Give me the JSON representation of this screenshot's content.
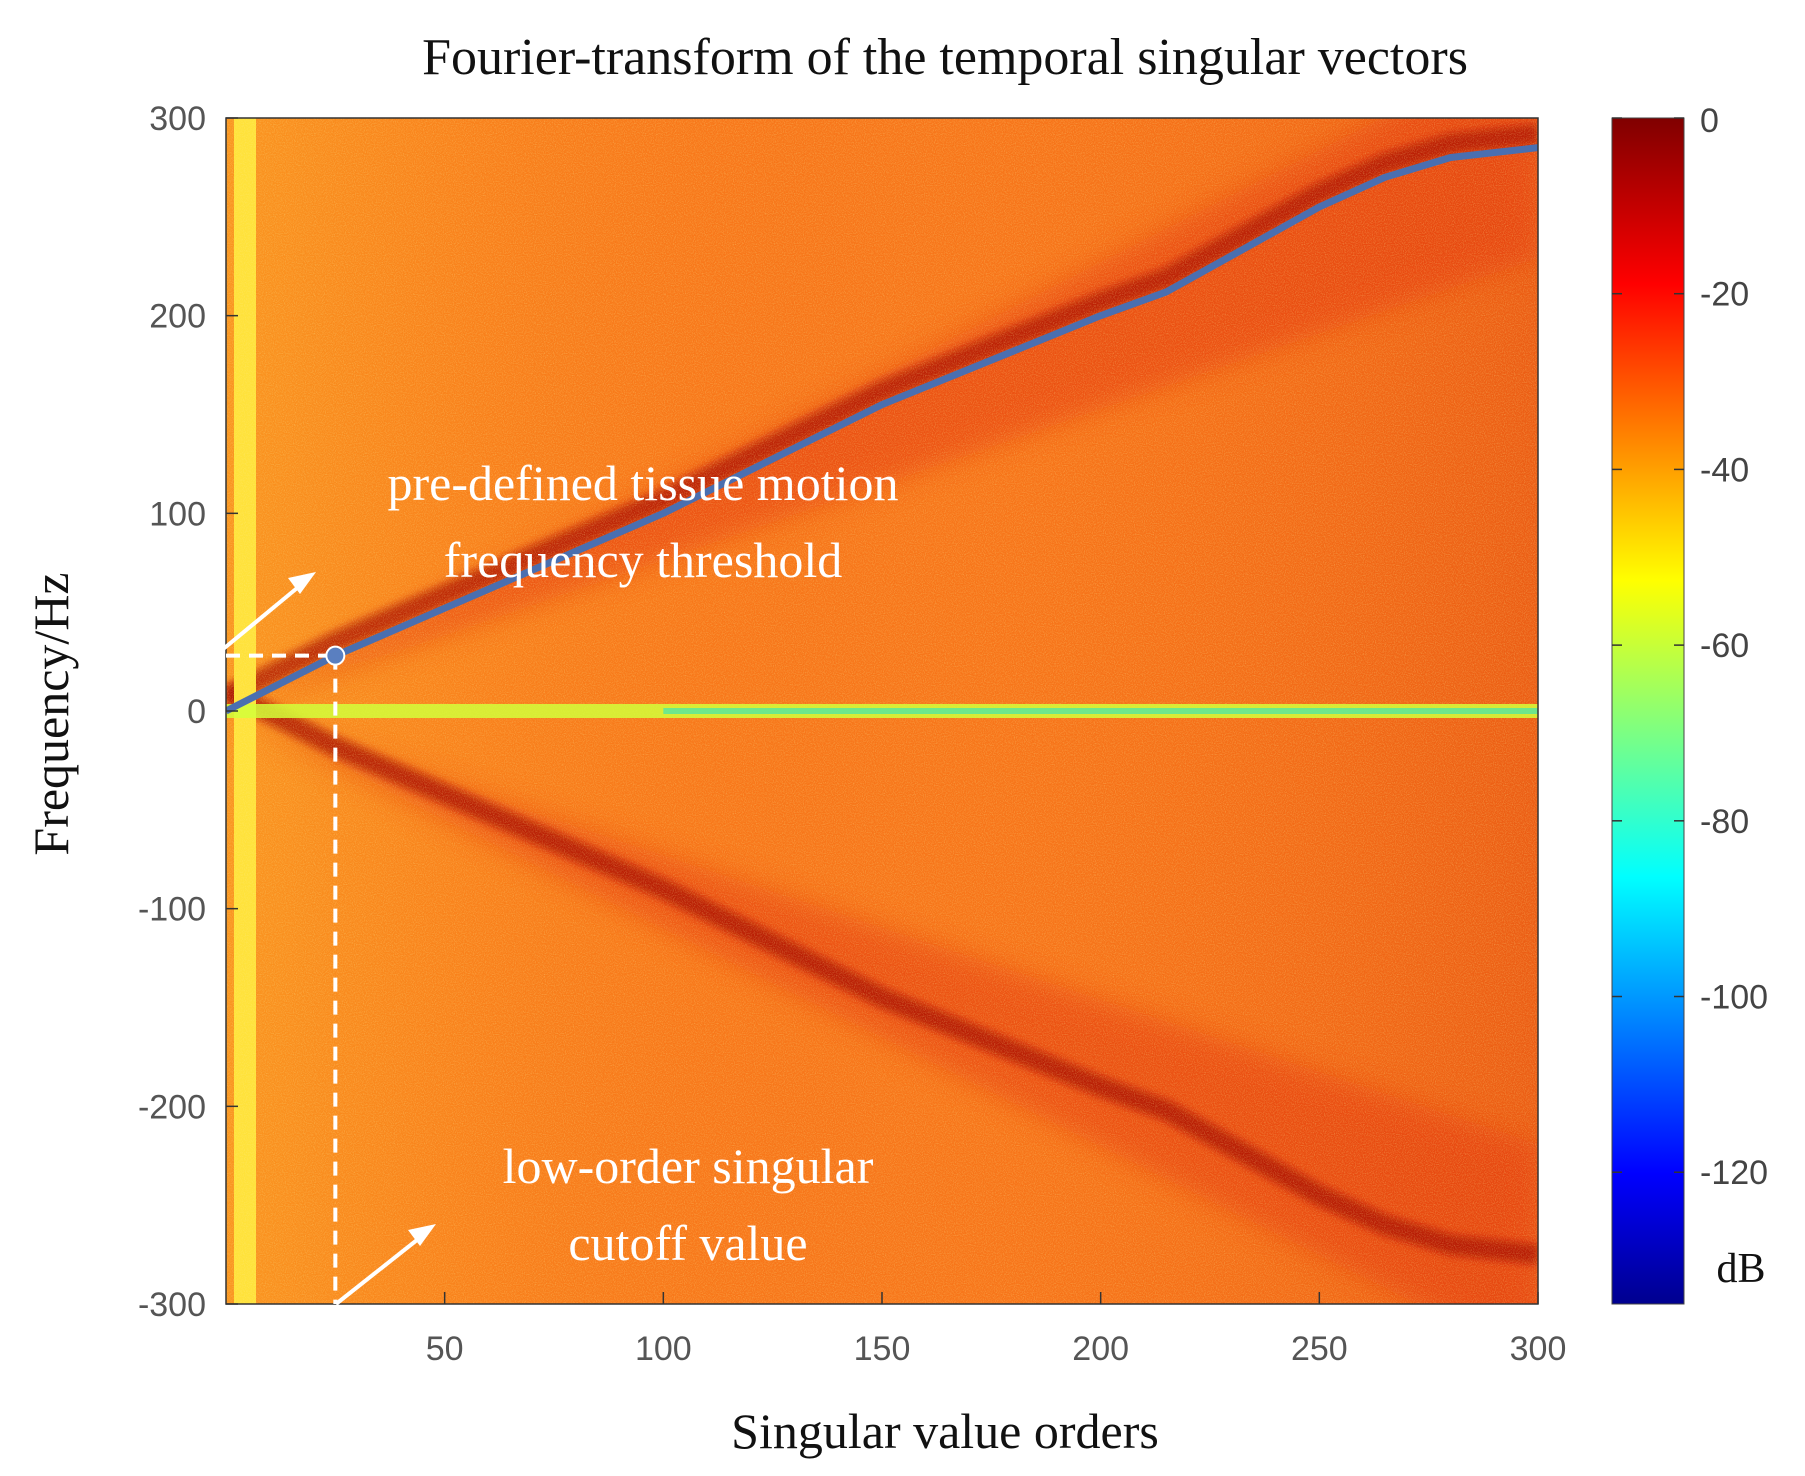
{
  "chart_data": {
    "type": "heatmap",
    "title": "Fourier-transform of the temporal singular vectors",
    "xlabel": "Singular value orders",
    "ylabel": "Frequency/Hz",
    "xlim": [
      0,
      300
    ],
    "ylim": [
      -300,
      300
    ],
    "x_ticks": [
      50,
      100,
      150,
      200,
      250,
      300
    ],
    "y_ticks": [
      300,
      200,
      100,
      0,
      -100,
      -200,
      -300
    ],
    "colorbar": {
      "label": "dB",
      "range": [
        -135,
        0
      ],
      "ticks": [
        0,
        -20,
        -40,
        -60,
        -80,
        -100,
        -120
      ],
      "colormap": "jet"
    },
    "threshold_curve": {
      "color": "#4a6fb0",
      "points": [
        [
          0,
          0
        ],
        [
          25,
          28
        ],
        [
          50,
          52
        ],
        [
          100,
          100
        ],
        [
          150,
          155
        ],
        [
          200,
          200
        ],
        [
          215,
          212
        ],
        [
          250,
          255
        ],
        [
          265,
          270
        ],
        [
          280,
          280
        ],
        [
          300,
          285
        ]
      ]
    },
    "cutoff_point": {
      "x": 25,
      "y": 28
    },
    "annotations": [
      {
        "lines": [
          "pre-defined tissue motion",
          "frequency threshold"
        ]
      },
      {
        "lines": [
          "low-order singular",
          "cutoff value"
        ]
      }
    ]
  }
}
